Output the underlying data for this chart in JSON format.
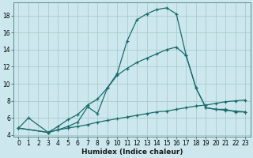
{
  "xlabel": "Humidex (Indice chaleur)",
  "bg_color": "#cce8ee",
  "grid_color": "#aacccc",
  "line_color": "#1a6b6b",
  "xlim": [
    -0.5,
    23.5
  ],
  "ylim": [
    3.8,
    19.5
  ],
  "xticks": [
    0,
    1,
    2,
    3,
    4,
    5,
    6,
    7,
    8,
    9,
    10,
    11,
    12,
    13,
    14,
    15,
    16,
    17,
    18,
    19,
    20,
    21,
    22,
    23
  ],
  "yticks": [
    4,
    6,
    8,
    10,
    12,
    14,
    16,
    18
  ],
  "line1_x": [
    0,
    1,
    3,
    4,
    5,
    6,
    7,
    8,
    9,
    10,
    11,
    12,
    13,
    14,
    15,
    16,
    17,
    18,
    19,
    20,
    21,
    22,
    23
  ],
  "line1_y": [
    4.8,
    6.0,
    4.3,
    4.6,
    5.0,
    5.5,
    7.3,
    6.5,
    9.5,
    11.2,
    15.0,
    17.5,
    18.2,
    18.7,
    18.9,
    18.2,
    13.3,
    9.5,
    7.2,
    7.0,
    7.0,
    6.7,
    6.7
  ],
  "line2_x": [
    0,
    3,
    4,
    5,
    6,
    7,
    8,
    9,
    10,
    11,
    12,
    13,
    14,
    15,
    16,
    17,
    18,
    19,
    20,
    21,
    22,
    23
  ],
  "line2_y": [
    4.8,
    4.3,
    5.0,
    5.8,
    6.4,
    7.5,
    8.2,
    9.5,
    11.0,
    11.8,
    12.5,
    13.0,
    13.5,
    14.0,
    14.3,
    13.3,
    9.5,
    7.2,
    7.0,
    6.9,
    6.8,
    6.7
  ],
  "line3_x": [
    0,
    3,
    4,
    5,
    6,
    7,
    8,
    9,
    10,
    11,
    12,
    13,
    14,
    15,
    16,
    17,
    18,
    19,
    20,
    21,
    22,
    23
  ],
  "line3_y": [
    4.8,
    4.3,
    4.6,
    4.8,
    5.0,
    5.2,
    5.5,
    5.7,
    5.9,
    6.1,
    6.3,
    6.5,
    6.7,
    6.8,
    7.0,
    7.2,
    7.4,
    7.5,
    7.7,
    7.9,
    8.0,
    8.1
  ],
  "markersize": 3.5,
  "linewidth": 0.9,
  "tick_fontsize": 5.5,
  "xlabel_fontsize": 6.5
}
